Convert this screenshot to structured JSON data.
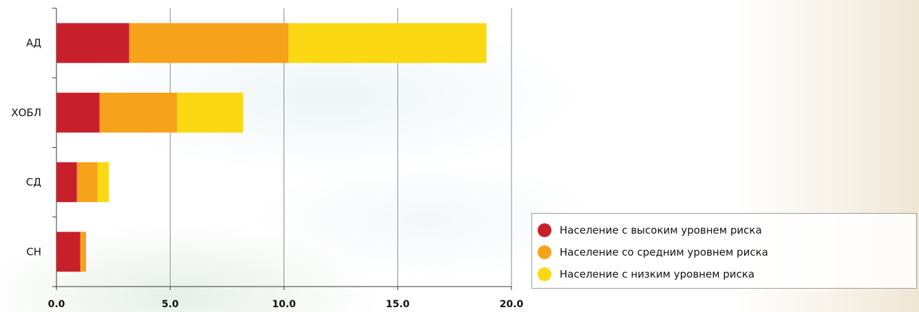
{
  "chart_data": {
    "type": "bar",
    "orientation": "horizontal",
    "stacked": true,
    "title": "",
    "xlabel": "",
    "ylabel": "",
    "categories": [
      "АД",
      "ХОБЛ",
      "СД",
      "СН"
    ],
    "series": [
      {
        "name": "Население с высоким уровнем риска",
        "color": "#c8202b",
        "values": [
          3.2,
          1.9,
          0.9,
          1.05
        ]
      },
      {
        "name": "Население со средним уровнем риска",
        "color": "#f7a21b",
        "values": [
          7.0,
          3.4,
          0.9,
          0.25
        ]
      },
      {
        "name": "Население с низким уровнем риска",
        "color": "#fbd812",
        "values": [
          8.7,
          2.9,
          0.5,
          0.0
        ]
      }
    ],
    "xlim": [
      0,
      20
    ],
    "xticks": [
      "0.0",
      "5.0",
      "10.0",
      "15.0",
      "20.0"
    ],
    "grid": "vertical",
    "legend": "bottom-right"
  }
}
